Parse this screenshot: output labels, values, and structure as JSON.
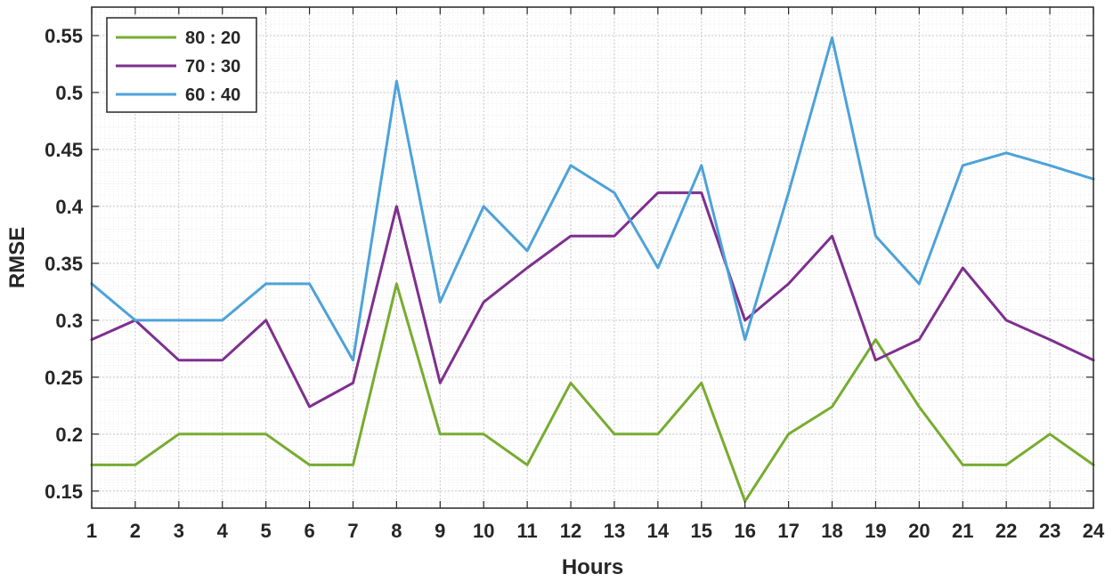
{
  "chart_data": {
    "type": "line",
    "title": "",
    "xlabel": "Hours",
    "ylabel": "RMSE",
    "x": [
      1,
      2,
      3,
      4,
      5,
      6,
      7,
      8,
      9,
      10,
      11,
      12,
      13,
      14,
      15,
      16,
      17,
      18,
      19,
      20,
      21,
      22,
      23,
      24
    ],
    "xlim": [
      1,
      24
    ],
    "ylim": [
      0.135,
      0.575
    ],
    "xticks": [
      "1",
      "2",
      "3",
      "4",
      "5",
      "6",
      "7",
      "8",
      "9",
      "10",
      "11",
      "12",
      "13",
      "14",
      "15",
      "16",
      "17",
      "18",
      "19",
      "20",
      "21",
      "22",
      "23",
      "24"
    ],
    "yticks": [
      0.15,
      0.2,
      0.25,
      0.3,
      0.35,
      0.4,
      0.45,
      0.5,
      0.55
    ],
    "ytick_labels": [
      "0.15",
      "0.2",
      "0.25",
      "0.3",
      "0.35",
      "0.4",
      "0.45",
      "0.5",
      "0.55"
    ],
    "grid": true,
    "minor_grid": true,
    "legend_position": "top-left",
    "series": [
      {
        "name": "80 : 20",
        "color": "#77ac30",
        "values": [
          0.173,
          0.173,
          0.2,
          0.2,
          0.2,
          0.173,
          0.173,
          0.332,
          0.2,
          0.2,
          0.173,
          0.245,
          0.2,
          0.2,
          0.245,
          0.141,
          0.2,
          0.224,
          0.283,
          0.224,
          0.173,
          0.173,
          0.2,
          0.173
        ]
      },
      {
        "name": "70 : 30",
        "color": "#7e2f8e",
        "values": [
          0.283,
          0.3,
          0.265,
          0.265,
          0.3,
          0.224,
          0.245,
          0.4,
          0.245,
          0.316,
          0.346,
          0.374,
          0.374,
          0.412,
          0.412,
          0.3,
          0.332,
          0.374,
          0.265,
          0.283,
          0.346,
          0.3,
          0.283,
          0.265
        ]
      },
      {
        "name": "60 : 40",
        "color": "#4da2d9",
        "values": [
          0.332,
          0.3,
          0.3,
          0.3,
          0.332,
          0.332,
          0.265,
          0.51,
          0.316,
          0.4,
          0.361,
          0.436,
          0.412,
          0.346,
          0.436,
          0.283,
          0.412,
          0.548,
          0.374,
          0.332,
          0.436,
          0.447,
          0.436,
          0.424
        ]
      }
    ]
  }
}
